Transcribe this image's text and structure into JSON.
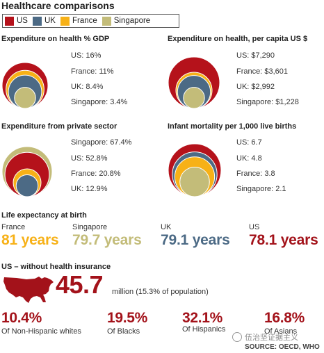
{
  "title": "Healthcare comparisons",
  "legend": [
    {
      "label": "US",
      "color": "#b5121b"
    },
    {
      "label": "UK",
      "color": "#4c6a85"
    },
    {
      "label": "France",
      "color": "#f7b117"
    },
    {
      "label": "Singapore",
      "color": "#c3bc79"
    }
  ],
  "colors": {
    "US": "#b5121b",
    "UK": "#4c6a85",
    "France": "#f7b117",
    "Singapore": "#c3bc79",
    "accent": "#a3121a"
  },
  "chart_data": [
    {
      "type": "bubble",
      "title": "Expenditure on health % GDP",
      "items": [
        {
          "name": "US",
          "value": 16,
          "label": "US: 16%"
        },
        {
          "name": "France",
          "value": 11,
          "label": "France: 11%"
        },
        {
          "name": "UK",
          "value": 8.4,
          "label": "UK: 8.4%"
        },
        {
          "name": "Singapore",
          "value": 3.4,
          "label": "Singapore: 3.4%"
        }
      ]
    },
    {
      "type": "bubble",
      "title": "Expenditure on health, per capita US $",
      "items": [
        {
          "name": "US",
          "value": 7290,
          "label": "US: $7,290"
        },
        {
          "name": "France",
          "value": 3601,
          "label": "France: $3,601"
        },
        {
          "name": "UK",
          "value": 2992,
          "label": "UK: $2,992"
        },
        {
          "name": "Singapore",
          "value": 1228,
          "label": "Singapore: $1,228"
        }
      ]
    },
    {
      "type": "bubble",
      "title": "Expenditure from private sector",
      "items": [
        {
          "name": "Singapore",
          "value": 67.4,
          "label": "Singapore: 67.4%"
        },
        {
          "name": "US",
          "value": 52.8,
          "label": "US: 52.8%"
        },
        {
          "name": "France",
          "value": 20.8,
          "label": "France: 20.8%"
        },
        {
          "name": "UK",
          "value": 12.9,
          "label": "UK: 12.9%"
        }
      ]
    },
    {
      "type": "bubble",
      "title": "Infant mortality per 1,000 live births",
      "items": [
        {
          "name": "US",
          "value": 6.7,
          "label": "US: 6.7"
        },
        {
          "name": "UK",
          "value": 4.8,
          "label": "UK: 4.8"
        },
        {
          "name": "France",
          "value": 3.8,
          "label": "France: 3.8"
        },
        {
          "name": "Singapore",
          "value": 2.1,
          "label": "Singapore: 2.1"
        }
      ]
    }
  ],
  "life_expectancy": {
    "title": "Life expectancy at birth",
    "items": [
      {
        "country": "France",
        "value": 81,
        "text": "81 years",
        "color": "#f7b117"
      },
      {
        "country": "Singapore",
        "value": 79.7,
        "text": "79.7 years",
        "color": "#c3bc79"
      },
      {
        "country": "UK",
        "value": 79.1,
        "text": "79.1 years",
        "color": "#4c6a85"
      },
      {
        "country": "US",
        "value": 78.1,
        "text": "78.1 years",
        "color": "#a3121a"
      }
    ]
  },
  "uninsured": {
    "title": "US – without health insurance",
    "total": "45.7",
    "caption": "million (15.3% of population)",
    "groups": [
      {
        "value": "10.4%",
        "label": "Of Non-Hispanic whites"
      },
      {
        "value": "19.5%",
        "label": "Of Blacks"
      },
      {
        "value": "32.1%",
        "label": "Of Hispanics"
      },
      {
        "value": "16.8%",
        "label": "Of Asians"
      }
    ]
  },
  "watermark": "伍治坚证据主义",
  "source": "SOURCE: OECD, WHO"
}
